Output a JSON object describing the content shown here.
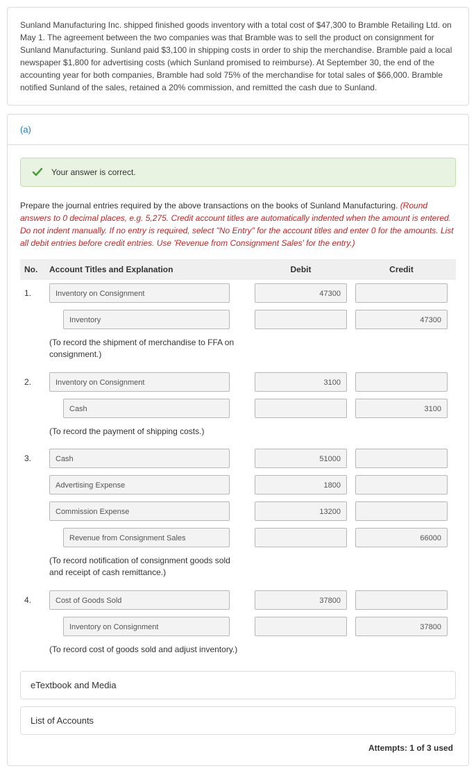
{
  "question": {
    "text": "Sunland Manufacturing Inc. shipped finished goods inventory with a total cost of $47,300 to Bramble Retailing Ltd. on May 1. The agreement between the two companies was that Bramble was to sell the product on consignment for Sunland Manufacturing. Sunland paid $3,100 in shipping costs in order to ship the merchandise. Bramble paid a local newspaper $1,800 for advertising costs (which Sunland promised to reimburse). At September 30, the end of the accounting year for both companies, Bramble had sold 75% of the merchandise for total sales of $66,000. Bramble notified Sunland of the sales, retained a 20% commission, and remitted the cash due to Sunland."
  },
  "part_label": "(a)",
  "banner": {
    "text": "Your answer is correct."
  },
  "prompt": {
    "lead": "Prepare the journal entries required by the above transactions on the books of Sunland Manufacturing. ",
    "hint": "(Round answers to 0 decimal places, e.g. 5,275. Credit account titles are automatically indented when the amount is entered. Do not indent manually. If no entry is required, select \"No Entry\" for the account titles and enter 0 for the amounts. List all debit entries before credit entries. Use 'Revenue from Consignment Sales' for the entry.)"
  },
  "headers": {
    "no": "No.",
    "acct": "Account Titles and Explanation",
    "debit": "Debit",
    "credit": "Credit"
  },
  "entries": [
    {
      "no": "1.",
      "lines": [
        {
          "title": "Inventory on Consignment",
          "debit": "47300",
          "credit": "",
          "indent": false
        },
        {
          "title": "Inventory",
          "debit": "",
          "credit": "47300",
          "indent": true
        }
      ],
      "explain": "(To record the shipment of merchandise to FFA on consignment.)"
    },
    {
      "no": "2.",
      "lines": [
        {
          "title": "Inventory on Consignment",
          "debit": "3100",
          "credit": "",
          "indent": false
        },
        {
          "title": "Cash",
          "debit": "",
          "credit": "3100",
          "indent": true
        }
      ],
      "explain": "(To record the payment of shipping costs.)"
    },
    {
      "no": "3.",
      "lines": [
        {
          "title": "Cash",
          "debit": "51000",
          "credit": "",
          "indent": false
        },
        {
          "title": "Advertising Expense",
          "debit": "1800",
          "credit": "",
          "indent": false
        },
        {
          "title": "Commission Expense",
          "debit": "13200",
          "credit": "",
          "indent": false
        },
        {
          "title": "Revenue from Consignment Sales",
          "debit": "",
          "credit": "66000",
          "indent": true
        }
      ],
      "explain": "(To record notification of consignment goods sold and receipt of cash remittance.)"
    },
    {
      "no": "4.",
      "lines": [
        {
          "title": "Cost of Goods Sold",
          "debit": "37800",
          "credit": "",
          "indent": false
        },
        {
          "title": "Inventory on Consignment",
          "debit": "",
          "credit": "37800",
          "indent": true
        }
      ],
      "explain": "(To record cost of goods sold and adjust inventory.)"
    }
  ],
  "panels": {
    "etextbook": "eTextbook and Media",
    "accounts": "List of Accounts"
  },
  "attempts": "Attempts: 1 of 3 used",
  "colors": {
    "link": "#1a7fc4",
    "banner_bg": "#e8f4e1",
    "banner_border": "#c1e0ac",
    "hint": "#c22",
    "check": "#4a9d3a"
  }
}
